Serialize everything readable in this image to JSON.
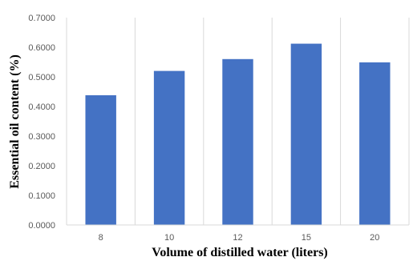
{
  "chart_data": {
    "type": "bar",
    "categories": [
      "8",
      "10",
      "12",
      "15",
      "20"
    ],
    "values": [
      0.438,
      0.52,
      0.56,
      0.612,
      0.549
    ],
    "xlabel": "Volume of distilled water (liters)",
    "ylabel": "Essential oil content (%)",
    "ylim": [
      0,
      0.7
    ],
    "yticks": [
      0,
      0.1,
      0.2,
      0.3,
      0.4,
      0.5,
      0.6,
      0.7
    ],
    "ytick_labels": [
      "0.0000",
      "0.1000",
      "0.2000",
      "0.3000",
      "0.4000",
      "0.5000",
      "0.6000",
      "0.7000"
    ],
    "grid": "vertical",
    "legend": "none",
    "bar_color": "#4472C4",
    "grid_color": "#D9D9D9"
  }
}
